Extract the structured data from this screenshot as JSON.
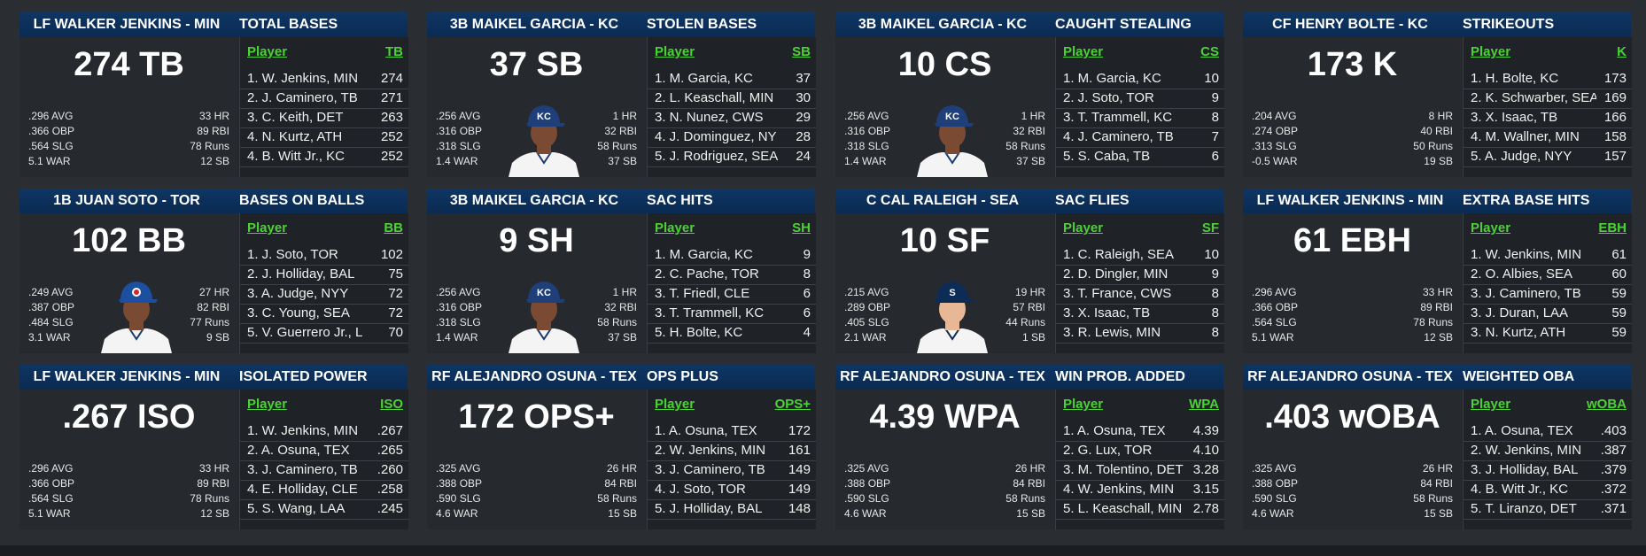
{
  "cards": [
    {
      "player": "LF WALKER JENKINS - MIN",
      "stat": "TOTAL BASES",
      "big": "274 TB",
      "left_stats": [
        ".296 AVG",
        ".366 OBP",
        ".564 SLG",
        "5.1 WAR"
      ],
      "right_stats": [
        "33 HR",
        "89 RBI",
        "78 Runs",
        "12 SB"
      ],
      "col_player": "Player",
      "col_stat": "TB",
      "rows": [
        [
          "1. W. Jenkins, MIN",
          "274"
        ],
        [
          "2. J. Caminero, TB",
          "271"
        ],
        [
          "3. C. Keith, DET",
          "263"
        ],
        [
          "4. N. Kurtz, ATH",
          "252"
        ],
        [
          "4. B. Witt Jr., KC",
          "252"
        ]
      ],
      "photo": "none"
    },
    {
      "player": "3B MAIKEL GARCIA - KC",
      "stat": "STOLEN BASES",
      "big": "37 SB",
      "left_stats": [
        ".256 AVG",
        ".316 OBP",
        ".318 SLG",
        "1.4 WAR"
      ],
      "right_stats": [
        "1 HR",
        "32 RBI",
        "58 Runs",
        "37 SB"
      ],
      "col_player": "Player",
      "col_stat": "SB",
      "rows": [
        [
          "1. M. Garcia, KC",
          "37"
        ],
        [
          "2. L. Keaschall, MIN",
          "30"
        ],
        [
          "3. N. Nunez, CWS",
          "29"
        ],
        [
          "4. J. Dominguez, NY",
          "28"
        ],
        [
          "5. J. Rodriguez, SEA",
          "24"
        ]
      ],
      "photo": "kc"
    },
    {
      "player": "3B MAIKEL GARCIA - KC",
      "stat": "CAUGHT STEALING",
      "big": "10 CS",
      "left_stats": [
        ".256 AVG",
        ".316 OBP",
        ".318 SLG",
        "1.4 WAR"
      ],
      "right_stats": [
        "1 HR",
        "32 RBI",
        "58 Runs",
        "37 SB"
      ],
      "col_player": "Player",
      "col_stat": "CS",
      "rows": [
        [
          "1. M. Garcia, KC",
          "10"
        ],
        [
          "2. J. Soto, TOR",
          "9"
        ],
        [
          "3. T. Trammell, KC",
          "8"
        ],
        [
          "4. J. Caminero, TB",
          "7"
        ],
        [
          "5. S. Caba, TB",
          "6"
        ]
      ],
      "photo": "kc"
    },
    {
      "player": "CF HENRY BOLTE - KC",
      "stat": "STRIKEOUTS",
      "big": "173 K",
      "left_stats": [
        ".204 AVG",
        ".274 OBP",
        ".313 SLG",
        "-0.5 WAR"
      ],
      "right_stats": [
        "8 HR",
        "40 RBI",
        "50 Runs",
        "19 SB"
      ],
      "col_player": "Player",
      "col_stat": "K",
      "rows": [
        [
          "1. H. Bolte, KC",
          "173"
        ],
        [
          "2. K. Schwarber, SEA",
          "169"
        ],
        [
          "3. X. Isaac, TB",
          "166"
        ],
        [
          "4. M. Wallner, MIN",
          "158"
        ],
        [
          "5. A. Judge, NYY",
          "157"
        ]
      ],
      "photo": "none"
    },
    {
      "player": "1B JUAN SOTO - TOR",
      "stat": "BASES ON BALLS",
      "big": "102 BB",
      "left_stats": [
        ".249 AVG",
        ".387 OBP",
        ".484 SLG",
        "3.1 WAR"
      ],
      "right_stats": [
        "27 HR",
        "82 RBI",
        "77 Runs",
        "9 SB"
      ],
      "col_player": "Player",
      "col_stat": "BB",
      "rows": [
        [
          "1. J. Soto, TOR",
          "102"
        ],
        [
          "2. J. Holliday, BAL",
          "75"
        ],
        [
          "3. A. Judge, NYY",
          "72"
        ],
        [
          "3. C. Young, SEA",
          "72"
        ],
        [
          "5. V. Guerrero Jr., L",
          "70"
        ]
      ],
      "photo": "tor"
    },
    {
      "player": "3B MAIKEL GARCIA - KC",
      "stat": "SAC HITS",
      "big": "9 SH",
      "left_stats": [
        ".256 AVG",
        ".316 OBP",
        ".318 SLG",
        "1.4 WAR"
      ],
      "right_stats": [
        "1 HR",
        "32 RBI",
        "58 Runs",
        "37 SB"
      ],
      "col_player": "Player",
      "col_stat": "SH",
      "rows": [
        [
          "1. M. Garcia, KC",
          "9"
        ],
        [
          "2. C. Pache, TOR",
          "8"
        ],
        [
          "3. T. Friedl, CLE",
          "6"
        ],
        [
          "3. T. Trammell, KC",
          "6"
        ],
        [
          "5. H. Bolte, KC",
          "4"
        ]
      ],
      "photo": "kc"
    },
    {
      "player": "C CAL RALEIGH - SEA",
      "stat": "SAC FLIES",
      "big": "10 SF",
      "left_stats": [
        ".215 AVG",
        ".289 OBP",
        ".405 SLG",
        "2.1 WAR"
      ],
      "right_stats": [
        "19 HR",
        "57 RBI",
        "44 Runs",
        "1 SB"
      ],
      "col_player": "Player",
      "col_stat": "SF",
      "rows": [
        [
          "1. C. Raleigh, SEA",
          "10"
        ],
        [
          "2. D. Dingler, MIN",
          "9"
        ],
        [
          "3. T. France, CWS",
          "8"
        ],
        [
          "3. X. Isaac, TB",
          "8"
        ],
        [
          "3. R. Lewis, MIN",
          "8"
        ]
      ],
      "photo": "sea"
    },
    {
      "player": "LF WALKER JENKINS - MIN",
      "stat": "EXTRA BASE HITS",
      "big": "61 EBH",
      "left_stats": [
        ".296 AVG",
        ".366 OBP",
        ".564 SLG",
        "5.1 WAR"
      ],
      "right_stats": [
        "33 HR",
        "89 RBI",
        "78 Runs",
        "12 SB"
      ],
      "col_player": "Player",
      "col_stat": "EBH",
      "rows": [
        [
          "1. W. Jenkins, MIN",
          "61"
        ],
        [
          "2. O. Albies, SEA",
          "60"
        ],
        [
          "3. J. Caminero, TB",
          "59"
        ],
        [
          "3. J. Duran, LAA",
          "59"
        ],
        [
          "3. N. Kurtz, ATH",
          "59"
        ]
      ],
      "photo": "none"
    },
    {
      "player": "LF WALKER JENKINS - MIN",
      "stat": "ISOLATED POWER",
      "big": ".267 ISO",
      "left_stats": [
        ".296 AVG",
        ".366 OBP",
        ".564 SLG",
        "5.1 WAR"
      ],
      "right_stats": [
        "33 HR",
        "89 RBI",
        "78 Runs",
        "12 SB"
      ],
      "col_player": "Player",
      "col_stat": "ISO",
      "rows": [
        [
          "1. W. Jenkins, MIN",
          ".267"
        ],
        [
          "2. A. Osuna, TEX",
          ".265"
        ],
        [
          "3. J. Caminero, TB",
          ".260"
        ],
        [
          "4. E. Holliday, CLE",
          ".258"
        ],
        [
          "5. S. Wang, LAA",
          ".245"
        ]
      ],
      "photo": "none"
    },
    {
      "player": "RF ALEJANDRO OSUNA - TEX",
      "stat": "OPS PLUS",
      "big": "172 OPS+",
      "left_stats": [
        ".325 AVG",
        ".388 OBP",
        ".590 SLG",
        "4.6 WAR"
      ],
      "right_stats": [
        "26 HR",
        "84 RBI",
        "58 Runs",
        "15 SB"
      ],
      "col_player": "Player",
      "col_stat": "OPS+",
      "rows": [
        [
          "1. A. Osuna, TEX",
          "172"
        ],
        [
          "2. W. Jenkins, MIN",
          "161"
        ],
        [
          "3. J. Caminero, TB",
          "149"
        ],
        [
          "4. J. Soto, TOR",
          "149"
        ],
        [
          "5. J. Holliday, BAL",
          "148"
        ]
      ],
      "photo": "none"
    },
    {
      "player": "RF ALEJANDRO OSUNA - TEX",
      "stat": "WIN PROB. ADDED",
      "big": "4.39 WPA",
      "left_stats": [
        ".325 AVG",
        ".388 OBP",
        ".590 SLG",
        "4.6 WAR"
      ],
      "right_stats": [
        "26 HR",
        "84 RBI",
        "58 Runs",
        "15 SB"
      ],
      "col_player": "Player",
      "col_stat": "WPA",
      "rows": [
        [
          "1. A. Osuna, TEX",
          "4.39"
        ],
        [
          "2. G. Lux, TOR",
          "4.10"
        ],
        [
          "3. M. Tolentino, DET",
          "3.28"
        ],
        [
          "4. W. Jenkins, MIN",
          "3.15"
        ],
        [
          "5. L. Keaschall, MIN",
          "2.78"
        ]
      ],
      "photo": "none"
    },
    {
      "player": "RF ALEJANDRO OSUNA - TEX",
      "stat": "WEIGHTED OBA",
      "big": ".403 wOBA",
      "left_stats": [
        ".325 AVG",
        ".388 OBP",
        ".590 SLG",
        "4.6 WAR"
      ],
      "right_stats": [
        "26 HR",
        "84 RBI",
        "58 Runs",
        "15 SB"
      ],
      "col_player": "Player",
      "col_stat": "wOBA",
      "rows": [
        [
          "1. A. Osuna, TEX",
          ".403"
        ],
        [
          "2. W. Jenkins, MIN",
          ".387"
        ],
        [
          "3. J. Holliday, BAL",
          ".379"
        ],
        [
          "4. B. Witt Jr., KC",
          ".372"
        ],
        [
          "5. T. Liranzo, DET",
          ".371"
        ]
      ],
      "photo": "none"
    }
  ],
  "colors": {
    "header": "#0e3563",
    "accent_green": "#4cd137",
    "background": "#2a2d31"
  }
}
